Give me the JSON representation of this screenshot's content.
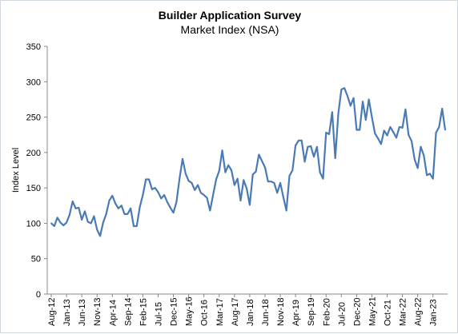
{
  "chart_data": {
    "type": "line",
    "title": "Builder Application Survey",
    "subtitle": "Market Index (NSA)",
    "ylabel": "Index Level",
    "xlabel": "",
    "ylim": [
      0,
      350
    ],
    "yticks": [
      0,
      50,
      100,
      150,
      200,
      250,
      300,
      350
    ],
    "grid": false,
    "legend": "none",
    "line_color": "#4a7ab4",
    "x_tick_labels": [
      "Aug-12",
      "Jan-13",
      "Jun-13",
      "Nov-13",
      "Apr-14",
      "Sep-14",
      "Feb-15",
      "Jul-15",
      "Dec-15",
      "May-16",
      "Oct-16",
      "Mar-17",
      "Aug-17",
      "Jan-18",
      "Jun-18",
      "Nov-18",
      "Apr-19",
      "Sep-19",
      "Feb-20",
      "Jul-20",
      "Dec-20",
      "May-21",
      "Oct-21",
      "Mar-22",
      "Aug-22",
      "Jan-23"
    ],
    "series": [
      {
        "values": [
          100,
          96,
          108,
          101,
          97,
          101,
          112,
          131,
          121,
          122,
          105,
          117,
          102,
          100,
          110,
          91,
          82,
          101,
          113,
          132,
          139,
          128,
          121,
          125,
          113,
          113,
          121,
          96,
          96,
          123,
          140,
          162,
          162,
          148,
          150,
          144,
          135,
          140,
          130,
          122,
          115,
          130,
          163,
          191,
          170,
          160,
          157,
          147,
          154,
          143,
          140,
          136,
          118,
          140,
          162,
          174,
          203,
          172,
          182,
          175,
          154,
          163,
          132,
          161,
          149,
          126,
          169,
          173,
          197,
          188,
          179,
          159,
          159,
          157,
          143,
          157,
          137,
          118,
          167,
          175,
          210,
          217,
          217,
          187,
          208,
          209,
          194,
          208,
          172,
          163,
          228,
          226,
          257,
          192,
          255,
          289,
          291,
          280,
          266,
          277,
          232,
          232,
          272,
          246,
          275,
          250,
          227,
          220,
          212,
          231,
          224,
          236,
          229,
          221,
          236,
          235,
          261,
          225,
          216,
          190,
          178,
          208,
          196,
          168,
          170,
          163,
          228,
          236,
          262,
          232
        ]
      }
    ]
  }
}
